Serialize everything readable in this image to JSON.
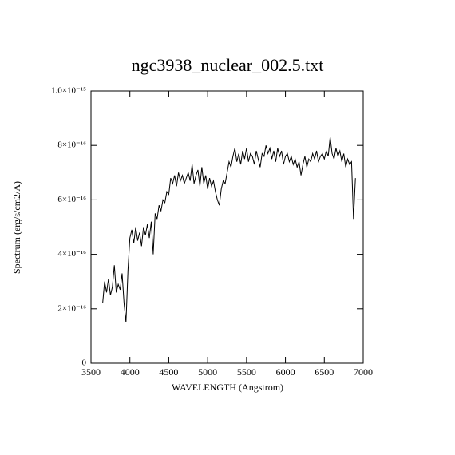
{
  "chart_data": {
    "type": "line",
    "title": "ngc3938_nuclear_002.5.txt",
    "xlabel": "WAVELENGTH (Angstrom)",
    "ylabel": "Spectrum (erg/s/cm2/A)",
    "color": "#000000",
    "xlim": [
      3500,
      7000
    ],
    "xticks": [
      3500,
      4000,
      4500,
      5000,
      5500,
      6000,
      6500,
      7000
    ],
    "ylim": [
      0,
      1e-15
    ],
    "yticks": [
      0,
      {
        "value": 2e-16,
        "label": "2×10⁻¹⁶"
      },
      {
        "value": 4e-16,
        "label": "4×10⁻¹⁶"
      },
      {
        "value": 6e-16,
        "label": "6×10⁻¹⁶"
      },
      {
        "value": 8e-16,
        "label": "8×10⁻¹⁶"
      },
      {
        "value": 1e-15,
        "label": "1.0×10⁻¹⁵"
      }
    ],
    "x": [
      3650,
      3675,
      3700,
      3725,
      3750,
      3775,
      3800,
      3825,
      3850,
      3875,
      3900,
      3925,
      3950,
      3975,
      4000,
      4025,
      4050,
      4075,
      4100,
      4125,
      4150,
      4175,
      4200,
      4225,
      4250,
      4275,
      4300,
      4325,
      4350,
      4375,
      4400,
      4425,
      4450,
      4475,
      4500,
      4525,
      4550,
      4575,
      4600,
      4625,
      4650,
      4675,
      4700,
      4725,
      4750,
      4775,
      4800,
      4825,
      4850,
      4875,
      4900,
      4925,
      4950,
      4975,
      5000,
      5025,
      5050,
      5075,
      5100,
      5125,
      5150,
      5175,
      5200,
      5225,
      5250,
      5275,
      5300,
      5325,
      5350,
      5375,
      5400,
      5425,
      5450,
      5475,
      5500,
      5525,
      5550,
      5575,
      5600,
      5625,
      5650,
      5675,
      5700,
      5725,
      5750,
      5775,
      5800,
      5825,
      5850,
      5875,
      5900,
      5925,
      5950,
      5975,
      6000,
      6025,
      6050,
      6075,
      6100,
      6125,
      6150,
      6175,
      6200,
      6225,
      6250,
      6275,
      6300,
      6325,
      6350,
      6375,
      6400,
      6425,
      6450,
      6475,
      6500,
      6525,
      6550,
      6575,
      6600,
      6625,
      6650,
      6675,
      6700,
      6725,
      6750,
      6775,
      6800,
      6825,
      6850,
      6875,
      6900
    ],
    "values": [
      2.2e-16,
      3e-16,
      2.6e-16,
      3.1e-16,
      2.5e-16,
      2.8e-16,
      3.6e-16,
      2.6e-16,
      2.9e-16,
      2.7e-16,
      3.3e-16,
      2.2e-16,
      1.5e-16,
      3.4e-16,
      4.6e-16,
      4.9e-16,
      4.4e-16,
      5e-16,
      4.5e-16,
      4.8e-16,
      4.3e-16,
      5e-16,
      4.7e-16,
      5.1e-16,
      4.6e-16,
      5.2e-16,
      4e-16,
      5.5e-16,
      5.3e-16,
      5.8e-16,
      5.6e-16,
      6e-16,
      5.9e-16,
      6.3e-16,
      6.2e-16,
      6.8e-16,
      6.6e-16,
      6.9e-16,
      6.5e-16,
      7e-16,
      6.7e-16,
      6.9e-16,
      6.6e-16,
      6.8e-16,
      7e-16,
      6.7e-16,
      7.3e-16,
      6.6e-16,
      6.9e-16,
      7.1e-16,
      6.5e-16,
      7.2e-16,
      6.6e-16,
      6.9e-16,
      6.4e-16,
      6.8e-16,
      6.5e-16,
      6.7e-16,
      6.3e-16,
      6e-16,
      5.8e-16,
      6.4e-16,
      6.7e-16,
      6.6e-16,
      7e-16,
      7.4e-16,
      7.2e-16,
      7.6e-16,
      7.9e-16,
      7.4e-16,
      7.7e-16,
      7.3e-16,
      7.8e-16,
      7.5e-16,
      7.9e-16,
      7.4e-16,
      7.7e-16,
      7.6e-16,
      7.3e-16,
      7.8e-16,
      7.5e-16,
      7.2e-16,
      7.7e-16,
      7.6e-16,
      8e-16,
      7.7e-16,
      7.9e-16,
      7.5e-16,
      7.8e-16,
      7.4e-16,
      7.9e-16,
      7.6e-16,
      7.8e-16,
      7.3e-16,
      7.6e-16,
      7.7e-16,
      7.4e-16,
      7.6e-16,
      7.3e-16,
      7.5e-16,
      7.2e-16,
      7.4e-16,
      6.9e-16,
      7.3e-16,
      7.6e-16,
      7.2e-16,
      7.5e-16,
      7.4e-16,
      7.7e-16,
      7.5e-16,
      7.8e-16,
      7.4e-16,
      7.6e-16,
      7.7e-16,
      7.5e-16,
      7.8e-16,
      7.6e-16,
      8.3e-16,
      7.7e-16,
      7.5e-16,
      7.9e-16,
      7.6e-16,
      7.8e-16,
      7.4e-16,
      7.7e-16,
      7.2e-16,
      7.5e-16,
      7.3e-16,
      7.4e-16,
      5.3e-16,
      6.8e-16
    ]
  }
}
